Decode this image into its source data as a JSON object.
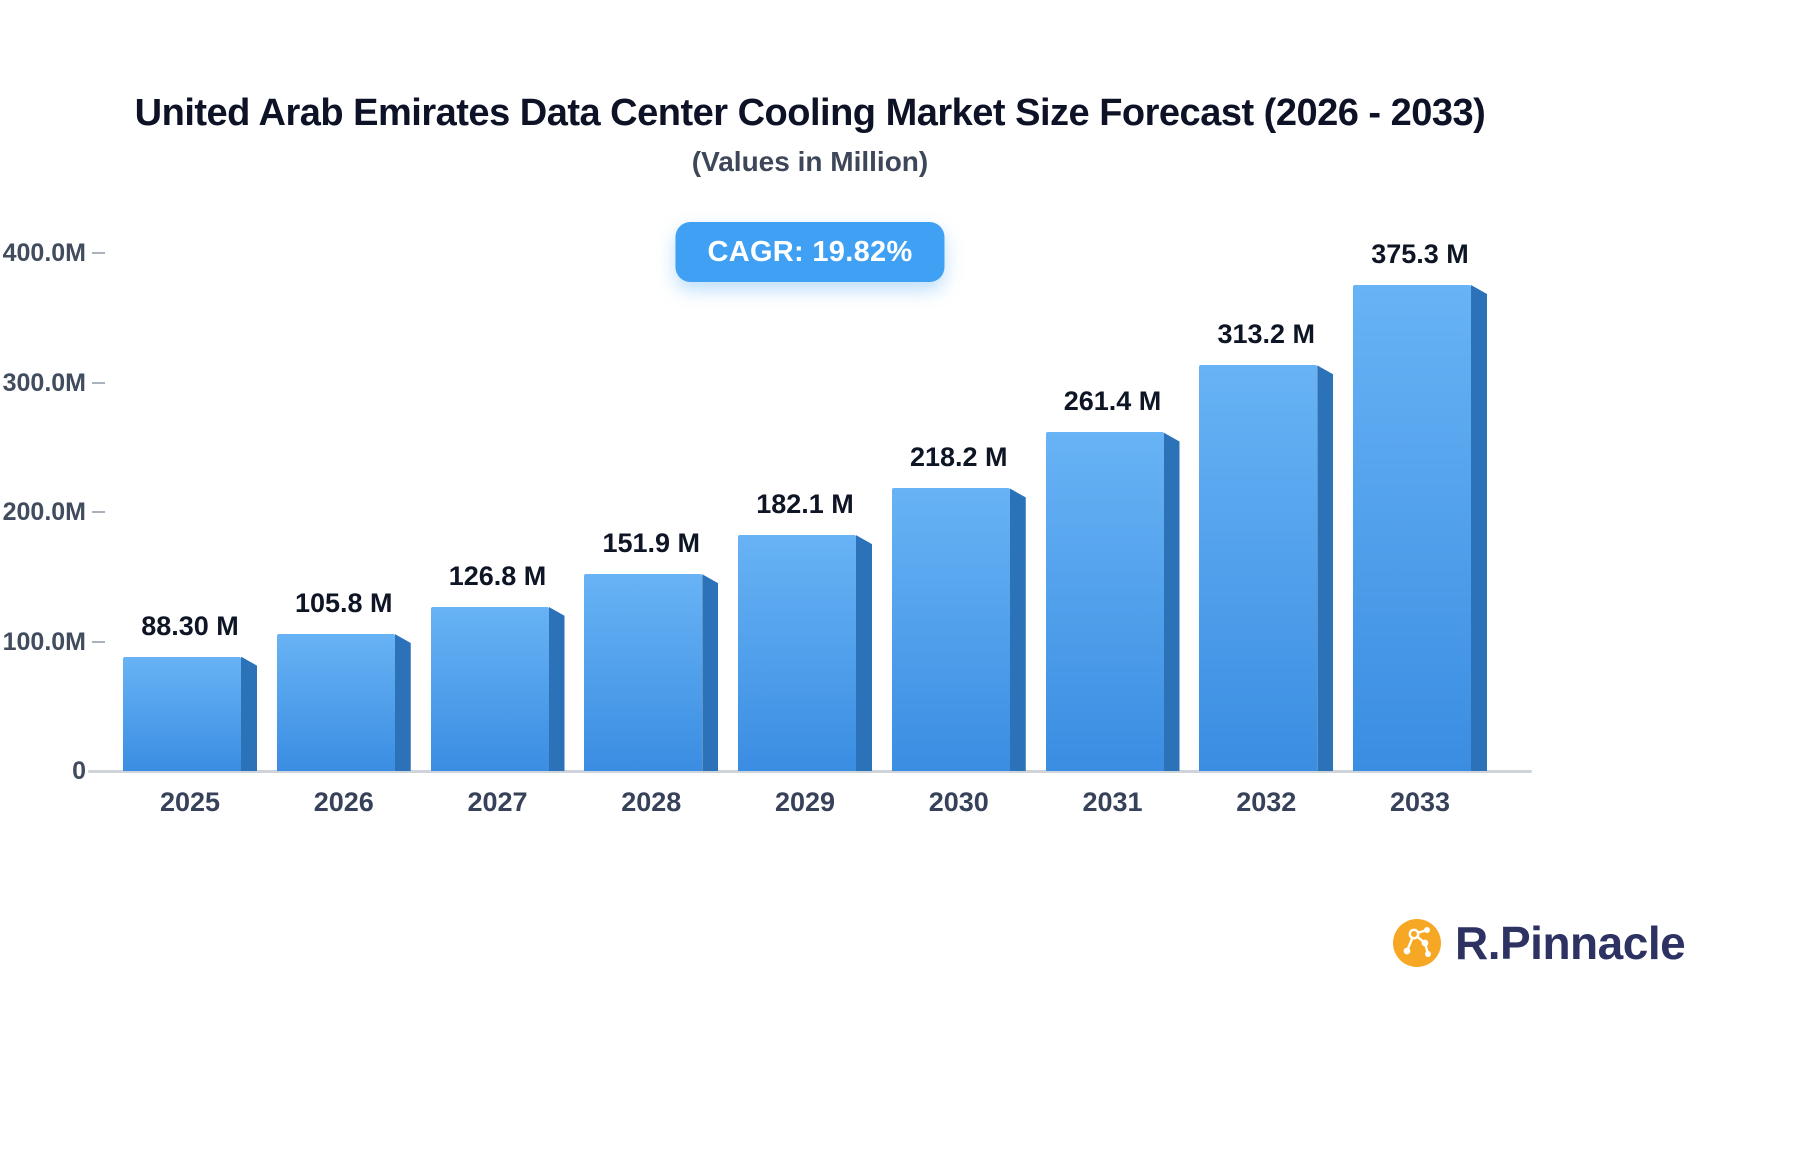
{
  "header": {
    "title": "United Arab Emirates Data Center Cooling Market Size Forecast (2026 - 2033)",
    "subtitle": "(Values in Million)"
  },
  "badge": {
    "label": "CAGR: 19.82%"
  },
  "chart_data": {
    "type": "bar",
    "title": "United Arab Emirates Data Center Cooling Market Size Forecast (2026 - 2033)",
    "subtitle": "(Values in Million)",
    "annotation": "CAGR: 19.82%",
    "categories": [
      "2025",
      "2026",
      "2027",
      "2028",
      "2029",
      "2030",
      "2031",
      "2032",
      "2033"
    ],
    "values": [
      88.3,
      105.8,
      126.8,
      151.9,
      182.1,
      218.2,
      261.4,
      313.2,
      375.3
    ],
    "value_labels": [
      "88.30 M",
      "105.8 M",
      "126.8 M",
      "151.9 M",
      "182.1 M",
      "218.2 M",
      "261.4 M",
      "313.2 M",
      "375.3 M"
    ],
    "xlabel": "",
    "ylabel": "",
    "ylim": [
      0,
      400
    ],
    "y_ticks": [
      {
        "value": 400,
        "label": "400.0M"
      },
      {
        "value": 300,
        "label": "300.0M"
      },
      {
        "value": 200,
        "label": "200.0M"
      },
      {
        "value": 100,
        "label": "100.0M"
      },
      {
        "value": 0,
        "label": "0"
      }
    ],
    "grid": false,
    "legend": false
  },
  "colors": {
    "bar_top": "#68b3f5",
    "bar_bottom": "#3a8de2",
    "bar_side": "#2c72b9",
    "badge_bg": "#3fa0f4",
    "axis": "#cfd4db",
    "value_label": "#0e1525",
    "tick_label": "#414c5e",
    "x_label": "#37425a",
    "logo_text": "#2d3263",
    "logo_icon": "#f6a723"
  },
  "logo": {
    "text": "R.Pinnacle"
  }
}
